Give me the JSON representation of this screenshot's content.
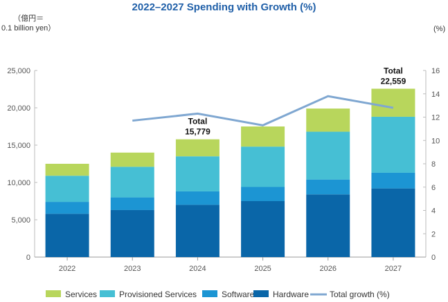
{
  "chart_data": {
    "type": "bar",
    "title": "2022–2027 Spending with Growth (%)",
    "left_unit_line1": "（億円＝",
    "left_unit_line2": "0.1 billion yen）",
    "right_unit": "(%)",
    "categories": [
      "2022",
      "2023",
      "2024",
      "2025",
      "2026",
      "2027"
    ],
    "series": [
      {
        "name": "Hardware",
        "color": "#0a66a8",
        "values": [
          5800,
          6300,
          7000,
          7500,
          8400,
          9200
        ]
      },
      {
        "name": "Software",
        "color": "#1c95d3",
        "values": [
          1600,
          1700,
          1800,
          1900,
          2000,
          2100
        ]
      },
      {
        "name": "Provisioned Services",
        "color": "#46bfd4",
        "values": [
          3500,
          4100,
          4700,
          5400,
          6400,
          7500
        ]
      },
      {
        "name": "Services",
        "color": "#b8d65c",
        "values": [
          1600,
          1900,
          2279,
          2700,
          3100,
          3759
        ]
      }
    ],
    "line_series": {
      "name": "Total growth (%)",
      "color": "#7fa7d1",
      "values": [
        null,
        11.7,
        12.3,
        11.3,
        13.8,
        12.8
      ]
    },
    "annotations": [
      {
        "category": "2024",
        "line1": "Total",
        "line2": "15,779",
        "value": 15779
      },
      {
        "category": "2027",
        "line1": "Total",
        "line2": "22,559",
        "value": 22559
      }
    ],
    "ylim_left": [
      0,
      25000
    ],
    "yticks_left": [
      "0",
      "5,000",
      "10,000",
      "15,000",
      "20,000",
      "25,000"
    ],
    "ylim_right": [
      0,
      16
    ],
    "yticks_right": [
      "0",
      "2",
      "4",
      "6",
      "8",
      "10",
      "12",
      "14",
      "16"
    ],
    "legend_order": [
      "Services",
      "Provisioned Services",
      "Software",
      "Hardware",
      "Total growth (%)"
    ]
  }
}
